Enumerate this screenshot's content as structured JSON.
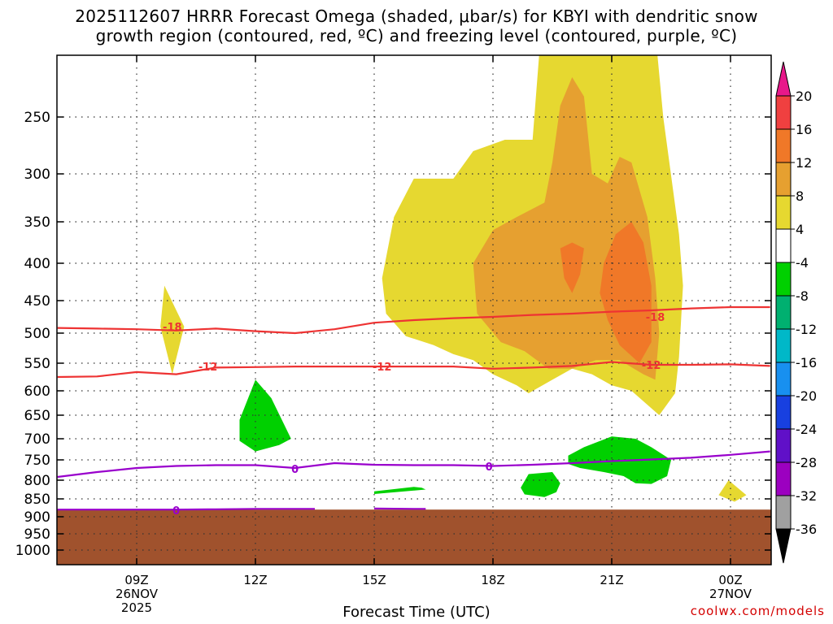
{
  "chart_data": {
    "type": "heatmap",
    "title_line1": "2025112607 HRRR Forecast Omega (shaded, μbar/s) for KBYI with dendritic snow",
    "title_line2": "growth region (contoured, red, ºC) and freezing level (contoured, purple, ºC)",
    "xlabel": "Forecast Time (UTC)",
    "ylabel": "",
    "credit": "coolwx.com/models",
    "x_ticks": [
      {
        "label": "09Z",
        "date": "26NOV",
        "year": "2025",
        "hour": 9
      },
      {
        "label": "12Z",
        "date": "",
        "year": "",
        "hour": 12
      },
      {
        "label": "15Z",
        "date": "",
        "year": "",
        "hour": 15
      },
      {
        "label": "18Z",
        "date": "",
        "year": "",
        "hour": 18
      },
      {
        "label": "21Z",
        "date": "",
        "year": "",
        "hour": 21
      },
      {
        "label": "00Z",
        "date": "27NOV",
        "year": "",
        "hour": 24
      }
    ],
    "xlim_hours": [
      7,
      25
    ],
    "y_axis": "pressure (mb), inverted",
    "y_ticks": [
      250,
      300,
      350,
      400,
      450,
      500,
      550,
      600,
      650,
      700,
      750,
      800,
      850,
      900,
      950,
      1000
    ],
    "ylim": [
      200,
      1025
    ],
    "grid": true,
    "colorbar": {
      "labels": [
        "20",
        "16",
        "12",
        "8",
        "4",
        "-4",
        "-8",
        "-12",
        "-16",
        "-20",
        "-24",
        "-28",
        "-32",
        "-36"
      ],
      "colors": [
        "#e8188a",
        "#f04040",
        "#f07828",
        "#e6a030",
        "#e6d830",
        "#ffffff",
        "#00d000",
        "#00b070",
        "#00b8c8",
        "#1890f0",
        "#1840e0",
        "#6010c8",
        "#9c00c0",
        "#a0a0a0",
        "#000000"
      ]
    },
    "terrain_color": "#a0522d",
    "terrain_top_mb": 880,
    "omega_regions": [
      {
        "level": "4-8",
        "color": "#e6d830",
        "points": [
          [
            9.7,
            430
          ],
          [
            10.2,
            490
          ],
          [
            9.9,
            570
          ],
          [
            9.6,
            490
          ]
        ]
      },
      {
        "level": "4-8",
        "color": "#e6d830",
        "points": [
          [
            15.2,
            420
          ],
          [
            15.5,
            345
          ],
          [
            16.0,
            305
          ],
          [
            17.0,
            305
          ],
          [
            17.5,
            280
          ],
          [
            18.3,
            270
          ],
          [
            19.0,
            270
          ],
          [
            19.3,
            135
          ],
          [
            19.5,
            112
          ],
          [
            20.0,
            110
          ],
          [
            20.8,
            112
          ],
          [
            21.0,
            100
          ],
          [
            21.5,
            108
          ],
          [
            21.8,
            140
          ],
          [
            22.1,
            175
          ],
          [
            22.3,
            250
          ],
          [
            22.7,
            365
          ],
          [
            22.8,
            430
          ],
          [
            22.7,
            540
          ],
          [
            22.6,
            605
          ],
          [
            22.2,
            650
          ],
          [
            21.5,
            600
          ],
          [
            21.0,
            590
          ],
          [
            20.5,
            570
          ],
          [
            20.0,
            560
          ],
          [
            19.5,
            580
          ],
          [
            18.9,
            605
          ],
          [
            18.6,
            590
          ],
          [
            18.0,
            570
          ],
          [
            17.5,
            545
          ],
          [
            17.0,
            535
          ],
          [
            16.5,
            520
          ],
          [
            15.8,
            505
          ],
          [
            15.3,
            470
          ]
        ]
      },
      {
        "level": "8-12",
        "color": "#e6a030",
        "points": [
          [
            17.5,
            400
          ],
          [
            18.0,
            360
          ],
          [
            18.6,
            345
          ],
          [
            19.3,
            330
          ],
          [
            19.5,
            290
          ],
          [
            19.7,
            240
          ],
          [
            20.0,
            215
          ],
          [
            20.3,
            232
          ],
          [
            20.5,
            300
          ],
          [
            20.9,
            310
          ],
          [
            21.2,
            285
          ],
          [
            21.5,
            290
          ],
          [
            21.9,
            345
          ],
          [
            22.1,
            420
          ],
          [
            22.2,
            500
          ],
          [
            22.1,
            580
          ],
          [
            21.8,
            570
          ],
          [
            21.2,
            545
          ],
          [
            20.6,
            545
          ],
          [
            20.0,
            560
          ],
          [
            19.4,
            560
          ],
          [
            18.8,
            530
          ],
          [
            18.2,
            515
          ],
          [
            17.6,
            470
          ]
        ]
      },
      {
        "level": "12-16",
        "color": "#f07828",
        "points": [
          [
            19.7,
            382
          ],
          [
            20.0,
            375
          ],
          [
            20.3,
            382
          ],
          [
            20.2,
            415
          ],
          [
            20.0,
            440
          ],
          [
            19.8,
            420
          ]
        ]
      },
      {
        "level": "12-16",
        "color": "#f07828",
        "points": [
          [
            20.8,
            400
          ],
          [
            21.1,
            365
          ],
          [
            21.5,
            350
          ],
          [
            21.8,
            375
          ],
          [
            22.0,
            430
          ],
          [
            22.0,
            515
          ],
          [
            21.7,
            550
          ],
          [
            21.2,
            520
          ],
          [
            20.9,
            480
          ],
          [
            20.7,
            440
          ]
        ]
      },
      {
        "level": "4-8",
        "color": "#e6d830",
        "points": [
          [
            23.7,
            840
          ],
          [
            23.95,
            800
          ],
          [
            24.4,
            840
          ],
          [
            24.1,
            858
          ]
        ]
      },
      {
        "level": "-4--8",
        "color": "#00d000",
        "points": [
          [
            11.6,
            660
          ],
          [
            12.0,
            580
          ],
          [
            12.4,
            615
          ],
          [
            12.9,
            700
          ],
          [
            12.6,
            715
          ],
          [
            12.0,
            730
          ],
          [
            11.6,
            705
          ]
        ]
      },
      {
        "level": "-4--8",
        "color": "#00d000",
        "points": [
          [
            15.0,
            830
          ],
          [
            16.0,
            818
          ],
          [
            16.2,
            820
          ],
          [
            16.3,
            825
          ],
          [
            15.0,
            837
          ]
        ]
      },
      {
        "level": "-4--8",
        "color": "#00d000",
        "points": [
          [
            18.7,
            820
          ],
          [
            18.9,
            785
          ],
          [
            19.5,
            780
          ],
          [
            19.7,
            808
          ],
          [
            19.6,
            832
          ],
          [
            19.3,
            845
          ],
          [
            18.8,
            838
          ]
        ]
      },
      {
        "level": "-4--8",
        "color": "#00d000",
        "points": [
          [
            19.9,
            740
          ],
          [
            20.3,
            720
          ],
          [
            21.0,
            695
          ],
          [
            21.6,
            700
          ],
          [
            22.0,
            720
          ],
          [
            22.5,
            750
          ],
          [
            22.4,
            790
          ],
          [
            22.0,
            810
          ],
          [
            21.6,
            808
          ],
          [
            21.3,
            790
          ],
          [
            20.8,
            780
          ],
          [
            20.2,
            770
          ],
          [
            19.9,
            760
          ]
        ]
      }
    ],
    "red_contours": [
      {
        "label": "-18",
        "label_at": [
          [
            9.9,
            490
          ],
          [
            22.1,
            475
          ]
        ],
        "points": [
          [
            7,
            492
          ],
          [
            8,
            493
          ],
          [
            9,
            494
          ],
          [
            10,
            496
          ],
          [
            11,
            493
          ],
          [
            12,
            497
          ],
          [
            13,
            500
          ],
          [
            14,
            494
          ],
          [
            15,
            484
          ],
          [
            16,
            480
          ],
          [
            17,
            477
          ],
          [
            18,
            475
          ],
          [
            19,
            472
          ],
          [
            20,
            470
          ],
          [
            21,
            467
          ],
          [
            22,
            465
          ],
          [
            23,
            462
          ],
          [
            24,
            460
          ],
          [
            25,
            460
          ]
        ]
      },
      {
        "label": "-12",
        "label_at": [
          [
            10.8,
            556
          ],
          [
            15.2,
            556
          ],
          [
            22.0,
            553
          ]
        ],
        "points": [
          [
            7,
            575
          ],
          [
            8,
            574
          ],
          [
            9,
            566
          ],
          [
            10,
            570
          ],
          [
            11,
            558
          ],
          [
            12,
            557
          ],
          [
            13,
            556
          ],
          [
            14,
            556
          ],
          [
            15,
            556
          ],
          [
            16,
            556
          ],
          [
            17,
            556
          ],
          [
            18,
            560
          ],
          [
            19,
            558
          ],
          [
            20,
            555
          ],
          [
            21,
            548
          ],
          [
            22,
            553
          ],
          [
            23,
            553
          ],
          [
            24,
            552
          ],
          [
            25,
            555
          ]
        ]
      }
    ],
    "purple_contours": [
      {
        "label": "0",
        "label_at": [
          [
            13.0,
            772
          ],
          [
            17.9,
            766
          ]
        ],
        "points": [
          [
            7,
            792
          ],
          [
            8,
            780
          ],
          [
            9,
            770
          ],
          [
            10,
            765
          ],
          [
            11,
            763
          ],
          [
            12,
            763
          ],
          [
            13,
            770
          ],
          [
            14,
            758
          ],
          [
            15,
            762
          ],
          [
            16,
            763
          ],
          [
            17,
            763
          ],
          [
            18,
            765
          ],
          [
            19,
            762
          ],
          [
            20,
            758
          ],
          [
            21,
            753
          ],
          [
            22,
            749
          ],
          [
            23,
            745
          ],
          [
            24,
            738
          ],
          [
            25,
            730
          ]
        ]
      },
      {
        "label": "0",
        "label_at": [
          [
            10.0,
            882
          ]
        ],
        "points": [
          [
            7,
            880
          ],
          [
            8,
            880
          ],
          [
            9,
            880
          ],
          [
            10,
            880
          ],
          [
            11,
            879
          ],
          [
            12,
            878
          ],
          [
            13,
            878
          ],
          [
            13.5,
            878
          ]
        ]
      },
      {
        "label": "",
        "label_at": [],
        "points": [
          [
            15,
            877
          ],
          [
            16,
            878
          ],
          [
            16.3,
            878
          ]
        ]
      }
    ]
  }
}
